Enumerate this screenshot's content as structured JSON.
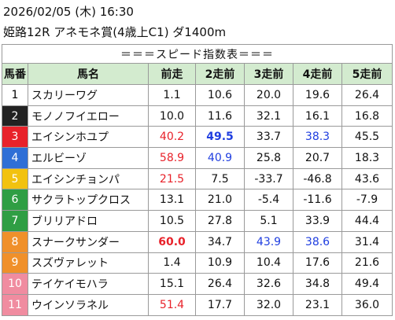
{
  "header": {
    "date": "2026/02/05 (木) 16:30",
    "race": "姫路12R アネモネ賞(4歳上C1) ダ1400m"
  },
  "table": {
    "title": "＝＝＝スピード指数表＝＝＝",
    "columns": [
      "馬番",
      "馬名",
      "前走",
      "2走前",
      "3走前",
      "4走前",
      "5走前"
    ],
    "rows": [
      {
        "number": "1",
        "name": "スカリーワグ",
        "values": [
          "1.1",
          "10.6",
          "20.0",
          "19.6",
          "26.4"
        ],
        "styles": [
          null,
          null,
          null,
          null,
          null
        ],
        "frame": "#ffffff",
        "frame_text": "#000000"
      },
      {
        "number": "2",
        "name": "モノノフイエロー",
        "values": [
          "10.0",
          "11.6",
          "32.1",
          "16.1",
          "16.8"
        ],
        "styles": [
          null,
          null,
          null,
          null,
          null
        ],
        "frame": "#222222",
        "frame_text": "#ffffff"
      },
      {
        "number": "3",
        "name": "エイシンホユプ",
        "values": [
          "40.2",
          "49.5",
          "33.7",
          "38.3",
          "45.5"
        ],
        "styles": [
          "red",
          "blue-bold",
          null,
          "blue",
          null
        ],
        "frame": "#e8222a",
        "frame_text": "#ffffff"
      },
      {
        "number": "4",
        "name": "エルビーゾ",
        "values": [
          "58.9",
          "40.9",
          "25.8",
          "20.7",
          "18.3"
        ],
        "styles": [
          "red",
          "blue",
          null,
          null,
          null
        ],
        "frame": "#2f6fd6",
        "frame_text": "#ffffff"
      },
      {
        "number": "5",
        "name": "エイシンチョンパ",
        "values": [
          "21.5",
          "7.5",
          "-33.7",
          "-46.8",
          "43.6"
        ],
        "styles": [
          "red",
          null,
          null,
          null,
          null
        ],
        "frame": "#f2c20f",
        "frame_text": "#ffffff"
      },
      {
        "number": "6",
        "name": "サクラトップクロス",
        "values": [
          "13.1",
          "21.0",
          "-5.4",
          "-11.6",
          "-7.9"
        ],
        "styles": [
          null,
          null,
          null,
          null,
          null
        ],
        "frame": "#2f9e44",
        "frame_text": "#ffffff"
      },
      {
        "number": "7",
        "name": "ブリリアドロ",
        "values": [
          "10.5",
          "27.8",
          "5.1",
          "33.9",
          "44.4"
        ],
        "styles": [
          null,
          null,
          null,
          null,
          null
        ],
        "frame": "#2f9e44",
        "frame_text": "#ffffff"
      },
      {
        "number": "8",
        "name": "スナークサンダー",
        "values": [
          "60.0",
          "34.7",
          "43.9",
          "38.6",
          "31.4"
        ],
        "styles": [
          "red-bold",
          null,
          "blue",
          "blue",
          null
        ],
        "frame": "#f0902a",
        "frame_text": "#ffffff"
      },
      {
        "number": "9",
        "name": "スズヴァレット",
        "values": [
          "1.4",
          "10.9",
          "10.4",
          "17.6",
          "21.6"
        ],
        "styles": [
          null,
          null,
          null,
          null,
          null
        ],
        "frame": "#f0902a",
        "frame_text": "#ffffff"
      },
      {
        "number": "10",
        "name": "テイケイモハラ",
        "values": [
          "15.1",
          "26.4",
          "32.6",
          "34.8",
          "49.4"
        ],
        "styles": [
          null,
          null,
          null,
          null,
          null
        ],
        "frame": "#f08ca0",
        "frame_text": "#ffffff"
      },
      {
        "number": "11",
        "name": "ウインソラネル",
        "values": [
          "51.4",
          "17.7",
          "32.0",
          "23.1",
          "36.0"
        ],
        "styles": [
          "red",
          null,
          null,
          null,
          null
        ],
        "frame": "#f08ca0",
        "frame_text": "#ffffff"
      }
    ]
  }
}
